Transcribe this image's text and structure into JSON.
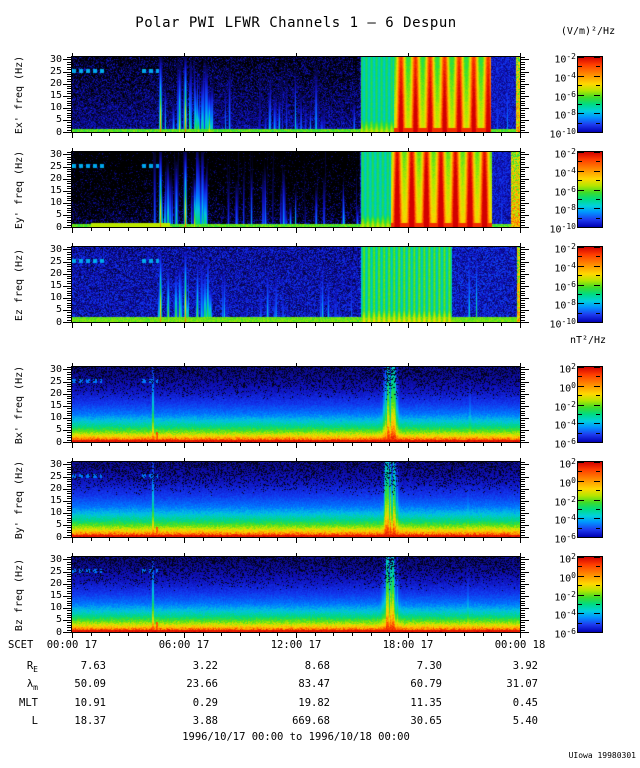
{
  "chart_data": {
    "type": "heatmap",
    "subtype": "spectrogram",
    "title": "Polar PWI LFWR Channels 1 — 6 Despun",
    "footer": "1996/10/17 00:00 to 1996/10/18 00:00",
    "credit": "UIowa 19980301",
    "units": {
      "electric": "(V/m)²/Hz",
      "magnetic": "nT²/Hz"
    },
    "x": {
      "prefix": "SCET",
      "labels": [
        "00:00 17",
        "06:00 17",
        "12:00 17",
        "18:00 17",
        "00:00 18"
      ],
      "range_hours": [
        0,
        24
      ],
      "major_tick_hours": 6,
      "minor_tick_hours": 1
    },
    "y": {
      "unit": "Hz",
      "range": [
        0,
        31
      ],
      "major_ticks": [
        30,
        25,
        20,
        15,
        10,
        5,
        0
      ],
      "minor_tick_step": 1
    },
    "colorbar_scales": {
      "electric_exponents": [
        -2,
        -4,
        -6,
        -8,
        -10
      ],
      "magnetic_exponents": [
        2,
        0,
        -2,
        -4,
        -6
      ]
    },
    "panels": [
      {
        "name": "Ex",
        "ylabel": "Ex' freq (Hz)",
        "quantity": "electric",
        "seed": 11,
        "features": {
          "background_dark": 0.2,
          "bg_noise": 0.07,
          "dash_25hz": [
            [
              0,
              1.75
            ],
            [
              3.6,
              4.65
            ]
          ],
          "strong_lines": [
            4.72,
            6.05
          ],
          "flame": [
            6.55,
            7.5
          ],
          "streak_cluster": [
            4.4,
            7.6
          ],
          "streak_scatter": [
            7.7,
            15.3
          ],
          "gap_lines": [
            22.75,
            23.3
          ],
          "green_region": [
            15.45,
            17.25
          ],
          "stripe_amp": 0.1,
          "bright_region": [
            17.25,
            22.4
          ],
          "warm": 0,
          "blue_gap": [
            22.4,
            23.75
          ],
          "edge_strip": 23.75
        }
      },
      {
        "name": "Ey",
        "ylabel": "Ey' freq (Hz)",
        "quantity": "electric",
        "seed": 22,
        "features": {
          "background_dark": 0.45,
          "bg_noise": 0.07,
          "dash_25hz": [
            [
              0,
              1.75
            ],
            [
              3.6,
              4.65
            ]
          ],
          "strong_lines": [
            4.72,
            6.05
          ],
          "flame": [
            6.55,
            7.5
          ],
          "streak_cluster": [
            4.4,
            7.6
          ],
          "streak_scatter": [
            7.7,
            15.3
          ],
          "gap_lines": [
            23.0
          ],
          "green_region": [
            15.45,
            17.05
          ],
          "stripe_amp": 0.1,
          "bright_region": [
            17.05,
            22.45
          ],
          "warm": 0.05,
          "blue_gap": [
            22.45,
            23.5
          ],
          "edge_strip": 23.5,
          "bottom_orange": [
            1.0,
            5.2
          ]
        }
      },
      {
        "name": "Ez",
        "ylabel": "Ez freq (Hz)",
        "quantity": "electric",
        "seed": 33,
        "features": {
          "background_dark": 0.05,
          "bg_noise": 0.09,
          "dash_25hz": [
            [
              0,
              1.75
            ],
            [
              3.6,
              4.65
            ]
          ],
          "strong_lines": [
            4.72,
            6.05
          ],
          "flame": [
            6.55,
            7.5
          ],
          "streak_cluster": [
            4.4,
            7.6
          ],
          "streak_scatter": [
            7.7,
            15.3
          ],
          "late_lines": [
            21.25,
            21.65
          ],
          "green_region": [
            15.45,
            20.35
          ],
          "stripe_amp": 0.16,
          "bright_region": null,
          "edge_strip": 23.8,
          "bottom_thick": true
        }
      },
      {
        "name": "Bx",
        "ylabel": "Bx' freq (Hz)",
        "quantity": "magnetic",
        "seed": 44,
        "features": {
          "dash_25hz": [
            [
              0,
              1.6
            ],
            [
              3.6,
              4.6
            ]
          ],
          "tall_line": 4.33,
          "orange_dot": 4.52,
          "burst_center": 17.05,
          "faint_line": 21.3,
          "fscale": 1.0
        }
      },
      {
        "name": "By",
        "ylabel": "By' freq (Hz)",
        "quantity": "magnetic",
        "seed": 55,
        "features": {
          "dash_25hz": [
            [
              0,
              1.6
            ],
            [
              3.55,
              4.6
            ]
          ],
          "tall_line": 4.33,
          "orange_dot": 4.52,
          "burst_center": 17.05,
          "faint_line": 21.2,
          "fscale": 0.93
        }
      },
      {
        "name": "Bz",
        "ylabel": "Bz freq (Hz)",
        "quantity": "magnetic",
        "seed": 66,
        "features": {
          "dash_25hz": [
            [
              0,
              1.6
            ],
            [
              3.55,
              4.6
            ]
          ],
          "tall_line": 4.33,
          "orange_dot": 4.52,
          "burst_center": 17.05,
          "faint_line": 21.2,
          "fscale": 1.0
        }
      }
    ],
    "ephemeris": {
      "rows": [
        {
          "label": "R",
          "sub": "E",
          "values": [
            "7.63",
            "3.22",
            "8.68",
            "7.30",
            "3.92"
          ]
        },
        {
          "label": "λ",
          "sub": "m",
          "values": [
            "50.09",
            "23.66",
            "83.47",
            "60.79",
            "31.07"
          ]
        },
        {
          "label": "MLT",
          "sub": "",
          "values": [
            "10.91",
            "0.29",
            "19.82",
            "11.35",
            "0.45"
          ]
        },
        {
          "label": "L",
          "sub": "",
          "values": [
            "18.37",
            "3.88",
            "669.68",
            "30.65",
            "5.40"
          ]
        }
      ]
    }
  }
}
